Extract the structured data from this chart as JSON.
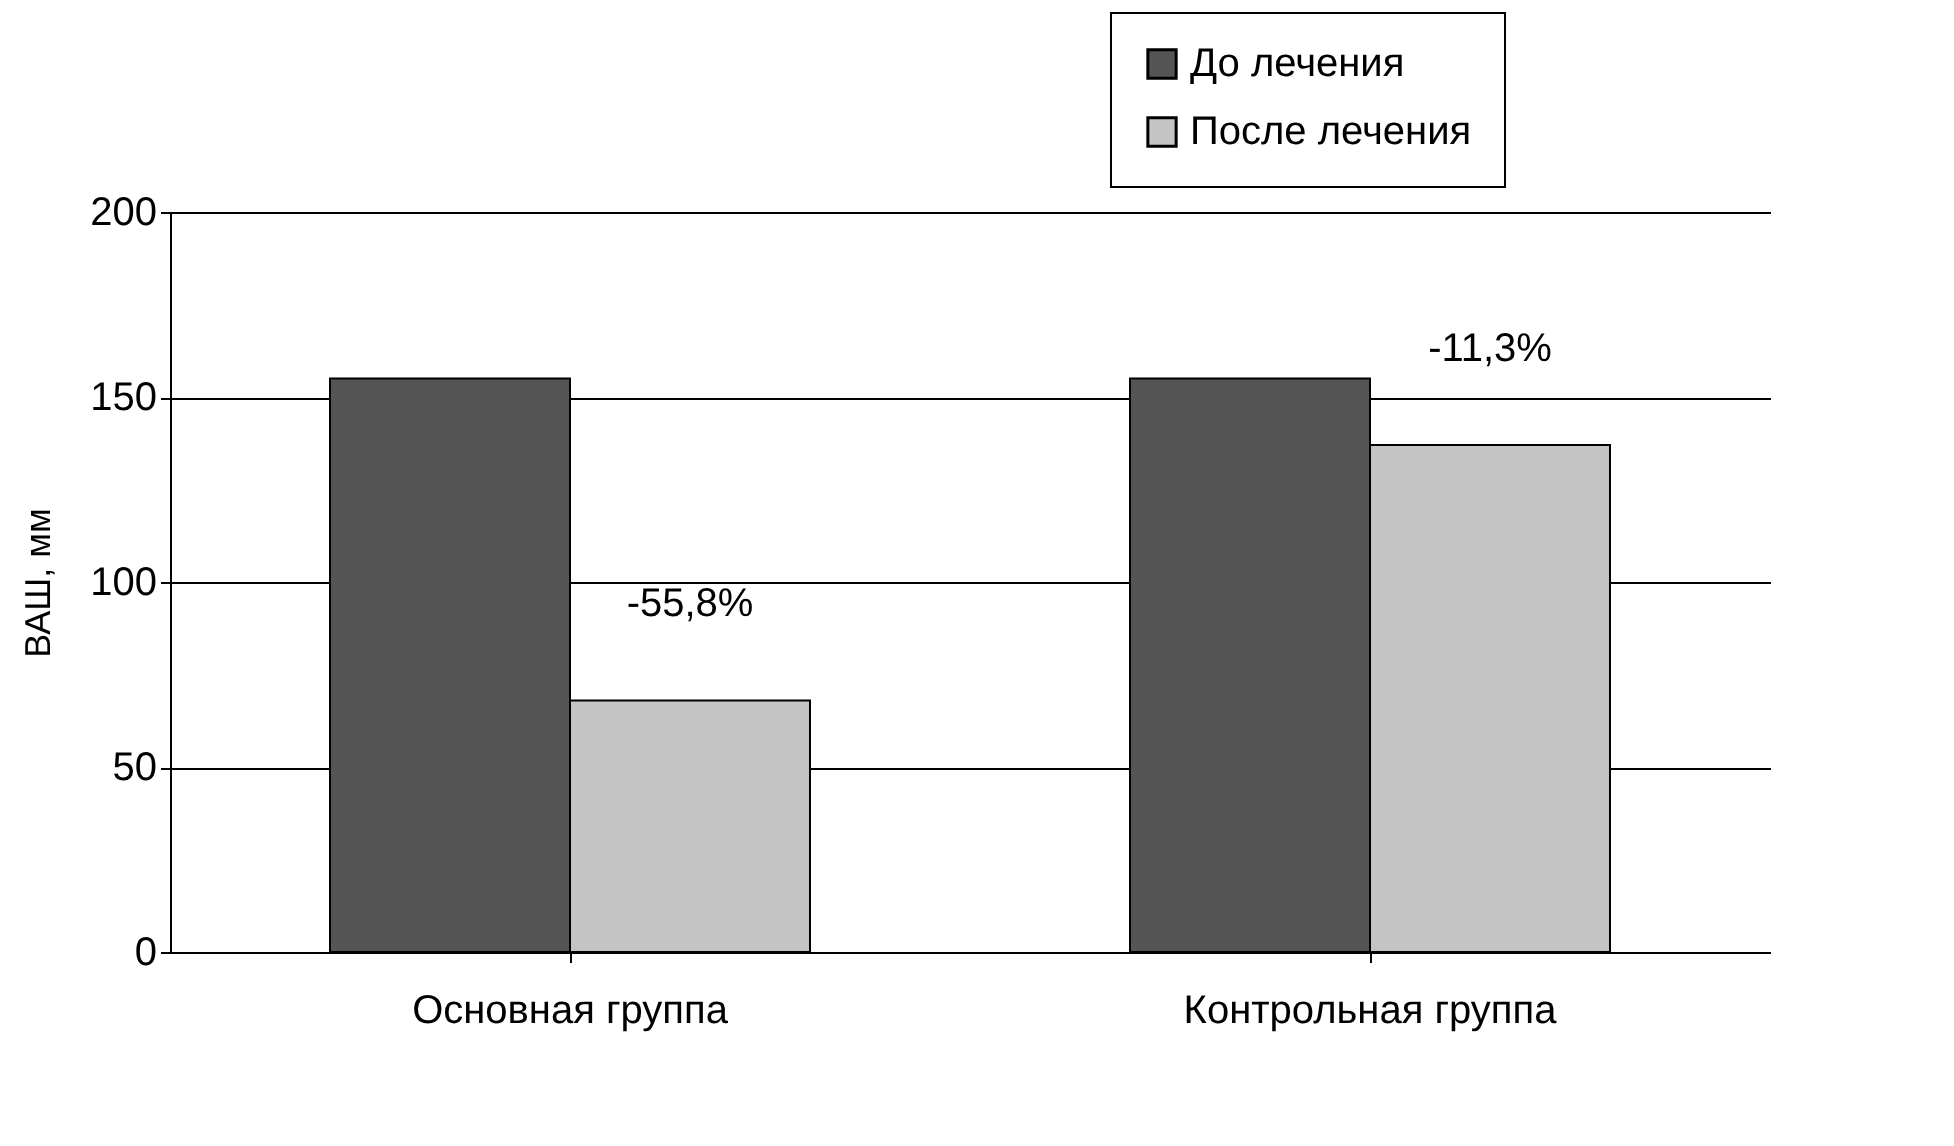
{
  "chart_data": {
    "type": "bar",
    "ylabel": "ВАШ, мм",
    "categories": [
      "Основная группа",
      "Контрольная группа"
    ],
    "series": [
      {
        "name": "До лечения",
        "color": "#555555",
        "values": [
          155,
          155
        ]
      },
      {
        "name": "После лечения",
        "color": "#c4c4c4",
        "values": [
          68,
          137
        ]
      }
    ],
    "ylim": [
      0,
      200
    ],
    "yticks": [
      0,
      50,
      100,
      150,
      200
    ],
    "grid": "y",
    "legend": "top right",
    "annotations": [
      {
        "text": "-55,8%",
        "x": "Основная группа",
        "y": 68
      },
      {
        "text": "-11,3%",
        "x": "Контрольная группа",
        "y": 137
      }
    ]
  }
}
